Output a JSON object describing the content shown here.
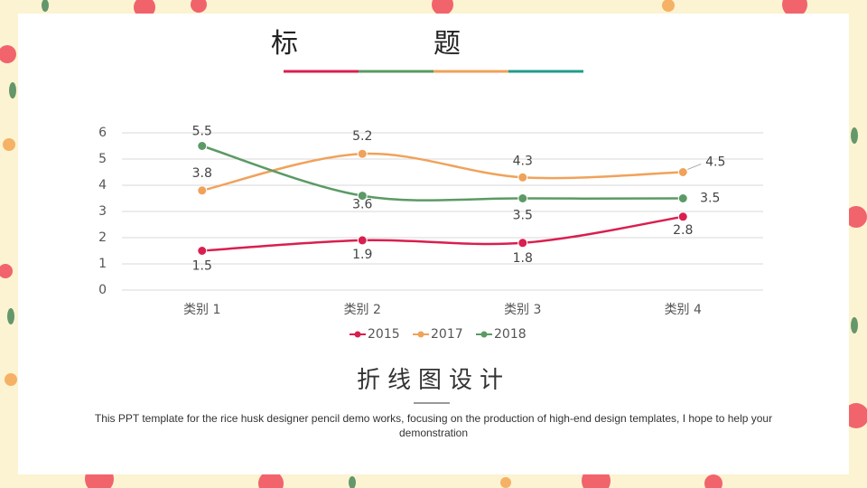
{
  "header": {
    "title": "标题"
  },
  "chart_data": {
    "type": "line",
    "categories": [
      "类别 1",
      "类别 2",
      "类别 3",
      "类别 4"
    ],
    "series": [
      {
        "name": "2015",
        "color": "#d91f4f",
        "values": [
          1.5,
          1.9,
          1.8,
          2.8
        ]
      },
      {
        "name": "2017",
        "color": "#f0a25a",
        "values": [
          3.8,
          5.2,
          4.3,
          4.5
        ]
      },
      {
        "name": "2018",
        "color": "#5b9a64",
        "values": [
          5.5,
          3.6,
          3.5,
          3.5
        ]
      }
    ],
    "ylim": [
      0,
      6
    ],
    "yticks": [
      0,
      1,
      2,
      3,
      4,
      5,
      6
    ],
    "grid": true,
    "legend": "bottom"
  },
  "footer": {
    "subtitle": "折线图设计",
    "description": "This PPT template for the rice husk designer pencil demo works, focusing on the production of high-end design templates, I hope to help your demonstration"
  }
}
